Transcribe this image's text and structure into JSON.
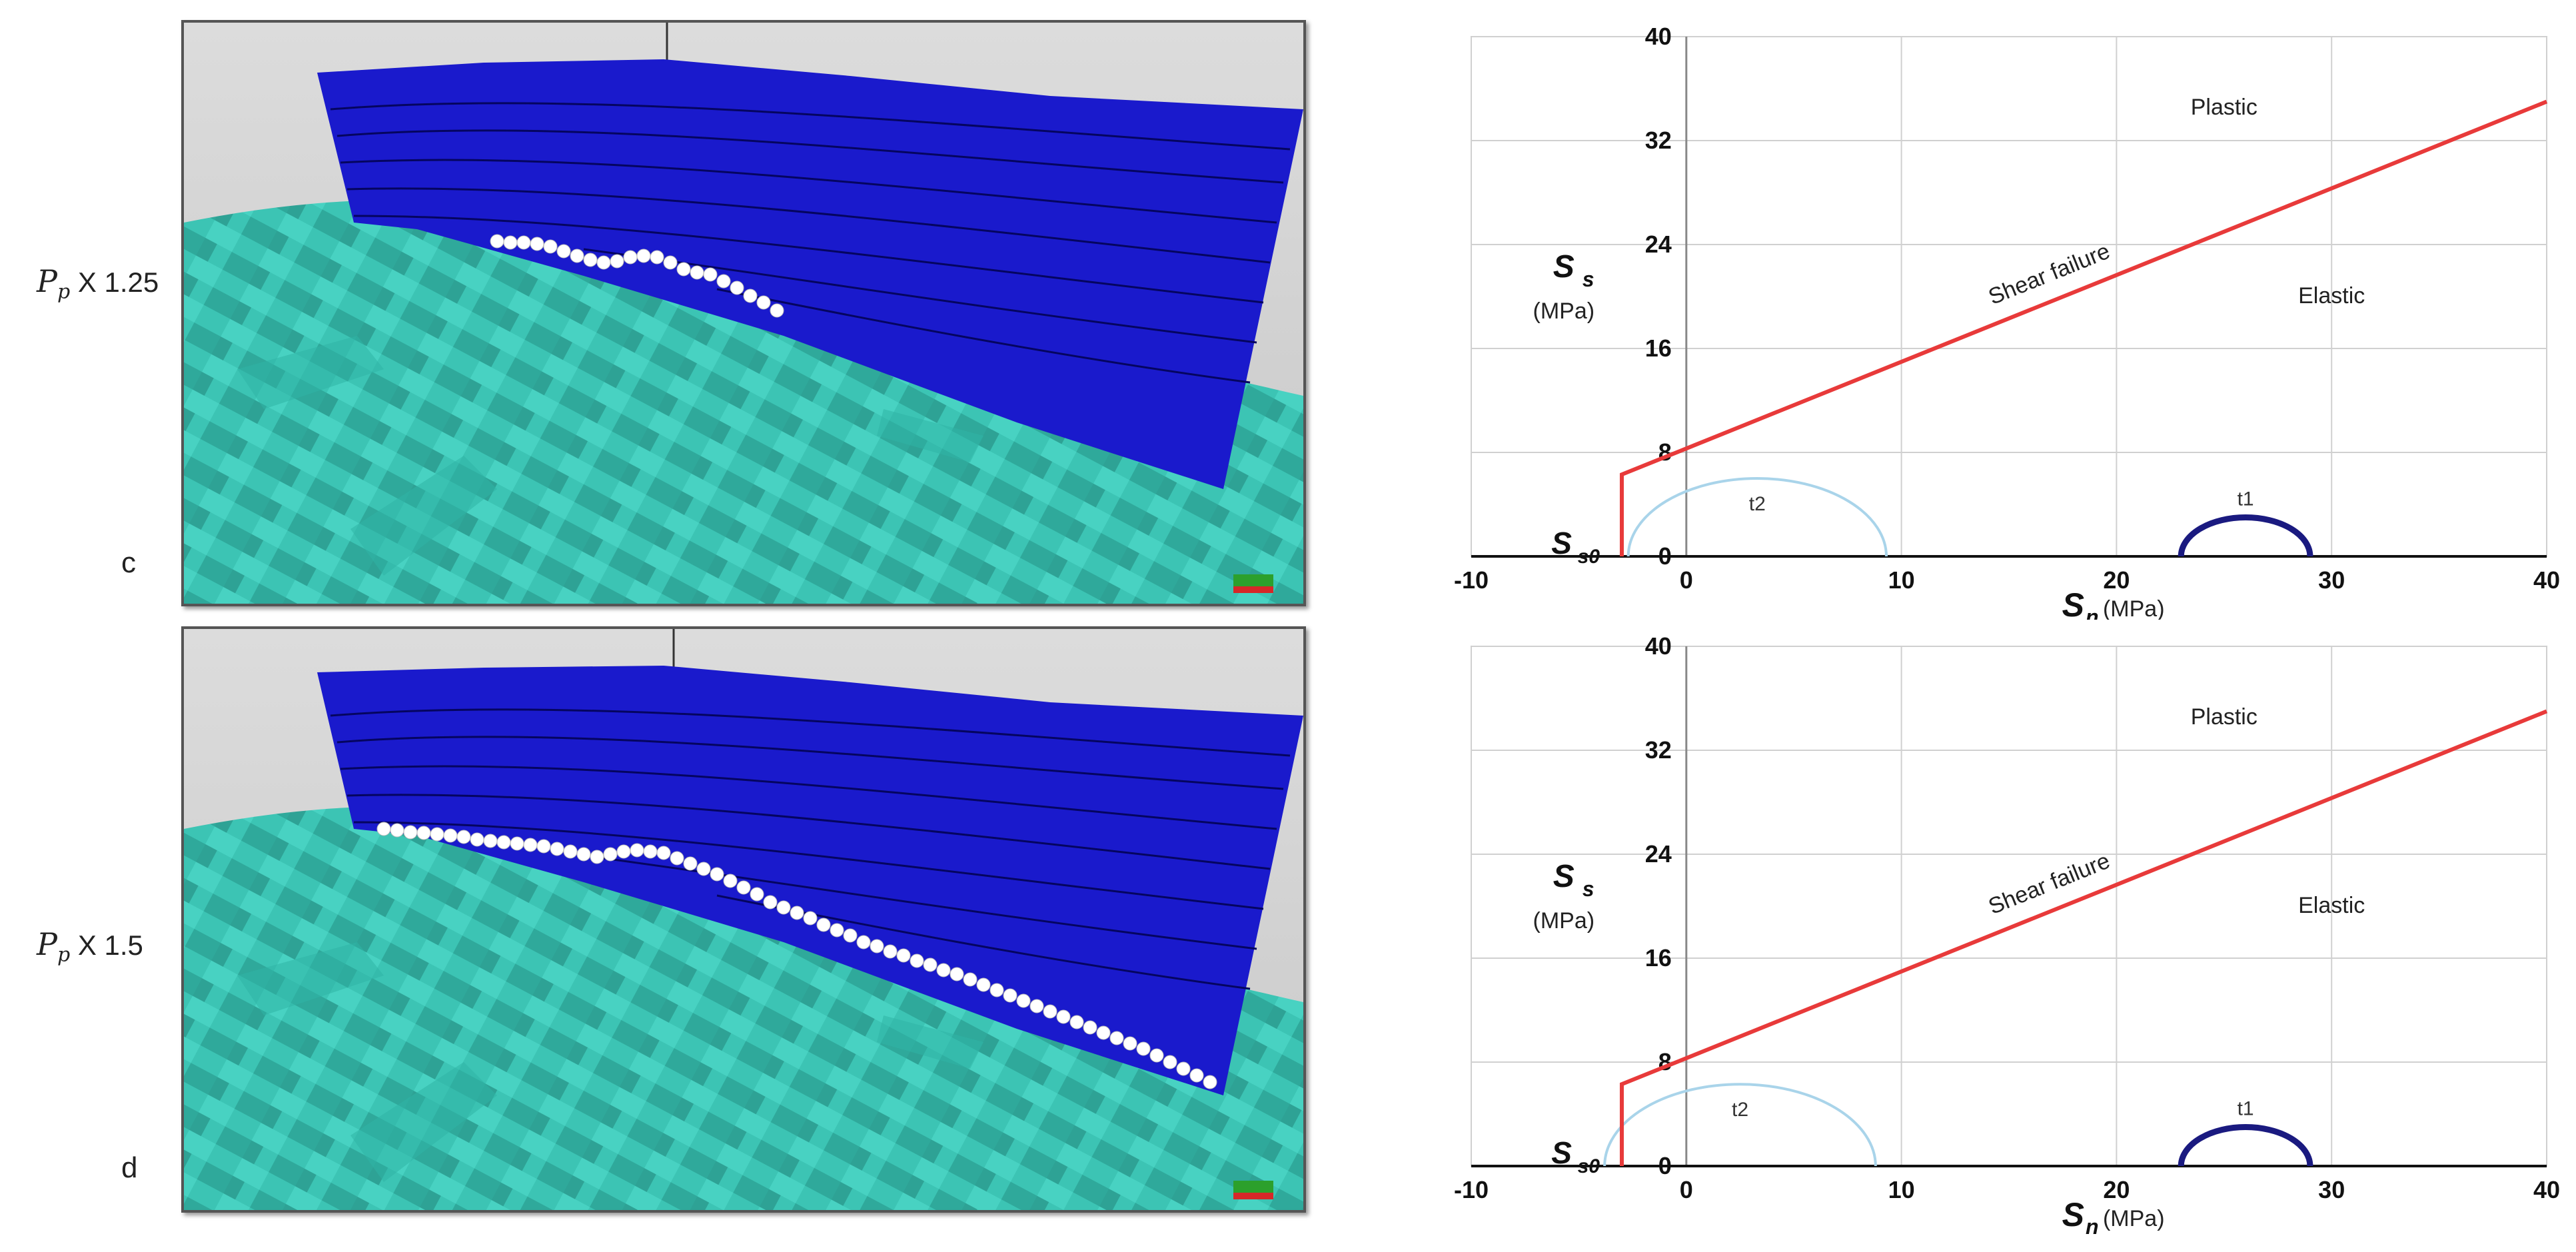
{
  "row_labels": [
    {
      "var": "P",
      "sub": "p",
      "mult": "X 1.25"
    },
    {
      "var": "P",
      "sub": "p",
      "mult": "X 1.5"
    }
  ],
  "panel_letters": [
    "c",
    "d"
  ],
  "colors": {
    "fault_plane": "#1a1acc",
    "terrain": "#3cc4b4",
    "terrain_dark": "#1f7f75",
    "slip_points": "#ffffff",
    "failure_line": "#e83a3a",
    "circle_t1": "#1a1a80",
    "circle_t2": "#a9d4ea",
    "grid": "#d0d0d0"
  },
  "chart_data": [
    {
      "type": "line",
      "title": "",
      "xlabel_var": "S",
      "xlabel_sub": "n",
      "xlabel_unit": "(MPa)",
      "ylabel_var": "S",
      "ylabel_sub": "s",
      "ylabel_unit": "(MPa)",
      "xlim": [
        -10,
        40
      ],
      "ylim": [
        0,
        40
      ],
      "xticks": [
        -10,
        0,
        10,
        20,
        30,
        40
      ],
      "yticks": [
        0,
        8,
        16,
        24,
        32,
        40
      ],
      "grid": true,
      "annotations": {
        "plastic": "Plastic",
        "elastic": "Elastic",
        "failure": "Shear failure",
        "t1": "t1",
        "t2": "t2",
        "ss0_var": "S",
        "ss0_sub": "s0"
      },
      "series": [
        {
          "name": "Shear failure",
          "x": [
            -3,
            -3,
            40
          ],
          "y": [
            0,
            6.3,
            35
          ]
        }
      ],
      "circles": [
        {
          "name": "t1",
          "center": 26,
          "radius": 3
        },
        {
          "name": "t2",
          "center": 3.3,
          "radius": 6
        }
      ]
    },
    {
      "type": "line",
      "title": "",
      "xlabel_var": "S",
      "xlabel_sub": "n",
      "xlabel_unit": "(MPa)",
      "ylabel_var": "S",
      "ylabel_sub": "s",
      "ylabel_unit": "(MPa)",
      "xlim": [
        -10,
        40
      ],
      "ylim": [
        0,
        40
      ],
      "xticks": [
        -10,
        0,
        10,
        20,
        30,
        40
      ],
      "yticks": [
        0,
        8,
        16,
        24,
        32,
        40
      ],
      "grid": true,
      "annotations": {
        "plastic": "Plastic",
        "elastic": "Elastic",
        "failure": "Shear failure",
        "t1": "t1",
        "t2": "t2",
        "ss0_var": "S",
        "ss0_sub": "s0"
      },
      "series": [
        {
          "name": "Shear failure",
          "x": [
            -3,
            -3,
            40
          ],
          "y": [
            0,
            6.3,
            35
          ]
        }
      ],
      "circles": [
        {
          "name": "t1",
          "center": 26,
          "radius": 3
        },
        {
          "name": "t2",
          "center": 2.5,
          "radius": 6.3
        }
      ]
    }
  ]
}
